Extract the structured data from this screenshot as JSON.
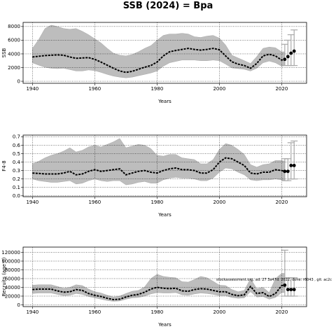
{
  "figure": {
    "title": "SSB (2024) = Bpa",
    "watermark": "stockassessment.org, ad: 27 3a47d. 2022, done: r6043 , git: ac2c"
  },
  "colors": {
    "band": "#bdbdbd",
    "band_edge": "#a8a8a8",
    "line": "#000000",
    "grid": "#000000",
    "errorbar": "#a9a9a9"
  },
  "chart_data": [
    {
      "type": "line",
      "title": "",
      "xlabel": "Years",
      "ylabel": "SSB",
      "xlim": [
        1937,
        2028
      ],
      "ylim": [
        -300,
        8600
      ],
      "xticks": [
        1940,
        1960,
        1980,
        2000,
        2020
      ],
      "yticks": [
        0,
        2000,
        4000,
        6000,
        8000
      ],
      "ytick_labels": [
        "0",
        "2000",
        "4000",
        "6000",
        "8000"
      ],
      "grid": true,
      "series": [
        {
          "role": "estimate",
          "x": [
            1940,
            1942,
            1944,
            1946,
            1948,
            1950,
            1952,
            1954,
            1956,
            1958,
            1960,
            1962,
            1964,
            1966,
            1968,
            1970,
            1972,
            1974,
            1976,
            1978,
            1980,
            1982,
            1984,
            1986,
            1988,
            1990,
            1992,
            1994,
            1996,
            1998,
            2000,
            2002,
            2004,
            2006,
            2008,
            2010,
            2012,
            2014,
            2016,
            2018,
            2020,
            2021
          ],
          "y": [
            3550,
            3650,
            3750,
            3800,
            3850,
            3800,
            3550,
            3350,
            3400,
            3450,
            3200,
            2800,
            2350,
            1900,
            1500,
            1300,
            1450,
            1750,
            2050,
            2300,
            2800,
            3700,
            4300,
            4500,
            4650,
            4800,
            4650,
            4550,
            4650,
            4800,
            4600,
            3700,
            2850,
            2500,
            2300,
            1900,
            2600,
            3700,
            3950,
            3700,
            3100,
            3200
          ]
        }
      ],
      "confidence_band": {
        "x": [
          1940,
          1942,
          1944,
          1946,
          1948,
          1950,
          1952,
          1954,
          1956,
          1958,
          1960,
          1962,
          1964,
          1966,
          1968,
          1970,
          1972,
          1974,
          1976,
          1978,
          1980,
          1982,
          1984,
          1986,
          1988,
          1990,
          1992,
          1994,
          1996,
          1998,
          2000,
          2002,
          2004,
          2006,
          2008,
          2010,
          2012,
          2014,
          2016,
          2018,
          2020,
          2021
        ],
        "low": [
          2700,
          2350,
          2050,
          1900,
          1850,
          1900,
          1700,
          1500,
          1500,
          1650,
          1550,
          1300,
          1000,
          750,
          600,
          500,
          600,
          800,
          1000,
          1200,
          1500,
          2200,
          2700,
          2900,
          3100,
          3100,
          3100,
          3000,
          3000,
          3100,
          3000,
          2500,
          1950,
          1850,
          1750,
          1500,
          1900,
          2700,
          2950,
          2700,
          2200,
          2300
        ],
        "high": [
          4800,
          6100,
          7700,
          8200,
          8000,
          7700,
          7600,
          7700,
          7300,
          6800,
          6200,
          5600,
          4800,
          4100,
          3800,
          3700,
          3900,
          4300,
          4800,
          5200,
          6000,
          6700,
          6900,
          6900,
          7000,
          6900,
          6500,
          6400,
          6600,
          6700,
          6300,
          5300,
          3800,
          3400,
          3000,
          2600,
          3600,
          4800,
          5000,
          4900,
          4300,
          4300
        ]
      },
      "forecast_points": {
        "x": [
          2021,
          2022,
          2023,
          2024
        ],
        "y": [
          3200,
          3600,
          4100,
          4400
        ],
        "low": [
          2300,
          2300,
          2300,
          2300
        ],
        "high": [
          5400,
          6000,
          6800,
          7500
        ]
      }
    },
    {
      "type": "line",
      "title": "",
      "xlabel": "Years",
      "ylabel": "F4-8",
      "xlim": [
        1937,
        2028
      ],
      "ylim": [
        -0.01,
        0.72
      ],
      "xticks": [
        1940,
        1960,
        1980,
        2000,
        2020
      ],
      "yticks": [
        0.0,
        0.1,
        0.2,
        0.3,
        0.4,
        0.5,
        0.6,
        0.7
      ],
      "ytick_labels": [
        "0.0",
        "0.1",
        "0.2",
        "0.3",
        "0.4",
        "0.5",
        "0.6",
        "0.7"
      ],
      "grid": true,
      "series": [
        {
          "role": "estimate",
          "x": [
            1940,
            1942,
            1944,
            1946,
            1948,
            1950,
            1952,
            1954,
            1956,
            1958,
            1960,
            1962,
            1964,
            1966,
            1968,
            1970,
            1972,
            1974,
            1976,
            1978,
            1980,
            1982,
            1984,
            1986,
            1988,
            1990,
            1992,
            1994,
            1996,
            1998,
            2000,
            2002,
            2004,
            2006,
            2008,
            2010,
            2012,
            2014,
            2016,
            2018,
            2020,
            2021
          ],
          "y": [
            0.27,
            0.265,
            0.26,
            0.26,
            0.26,
            0.27,
            0.29,
            0.25,
            0.26,
            0.29,
            0.31,
            0.29,
            0.3,
            0.31,
            0.32,
            0.25,
            0.27,
            0.29,
            0.3,
            0.28,
            0.27,
            0.3,
            0.32,
            0.33,
            0.31,
            0.31,
            0.3,
            0.27,
            0.27,
            0.31,
            0.4,
            0.45,
            0.44,
            0.4,
            0.36,
            0.27,
            0.26,
            0.28,
            0.28,
            0.31,
            0.3,
            0.29
          ]
        }
      ],
      "confidence_band": {
        "x": [
          1940,
          1942,
          1944,
          1946,
          1948,
          1950,
          1952,
          1954,
          1956,
          1958,
          1960,
          1962,
          1964,
          1966,
          1968,
          1970,
          1972,
          1974,
          1976,
          1978,
          1980,
          1982,
          1984,
          1986,
          1988,
          1990,
          1992,
          1994,
          1996,
          1998,
          2000,
          2002,
          2004,
          2006,
          2008,
          2010,
          2012,
          2014,
          2016,
          2018,
          2020,
          2021
        ],
        "low": [
          0.2,
          0.18,
          0.17,
          0.16,
          0.16,
          0.17,
          0.18,
          0.14,
          0.15,
          0.18,
          0.2,
          0.18,
          0.17,
          0.18,
          0.18,
          0.13,
          0.14,
          0.16,
          0.17,
          0.15,
          0.15,
          0.19,
          0.21,
          0.22,
          0.21,
          0.21,
          0.2,
          0.18,
          0.18,
          0.21,
          0.28,
          0.33,
          0.32,
          0.28,
          0.25,
          0.19,
          0.18,
          0.19,
          0.19,
          0.2,
          0.19,
          0.18
        ],
        "high": [
          0.38,
          0.41,
          0.45,
          0.48,
          0.5,
          0.53,
          0.57,
          0.52,
          0.54,
          0.58,
          0.6,
          0.58,
          0.61,
          0.64,
          0.68,
          0.57,
          0.59,
          0.61,
          0.6,
          0.56,
          0.48,
          0.47,
          0.49,
          0.49,
          0.45,
          0.44,
          0.43,
          0.38,
          0.38,
          0.43,
          0.55,
          0.62,
          0.6,
          0.55,
          0.49,
          0.37,
          0.34,
          0.37,
          0.38,
          0.42,
          0.42,
          0.41
        ]
      },
      "forecast_points": {
        "x": [
          2021,
          2022,
          2023,
          2024
        ],
        "y": [
          0.29,
          0.29,
          0.36,
          0.36
        ],
        "low": [
          0.18,
          0.18,
          0.2,
          0.2
        ],
        "high": [
          0.44,
          0.44,
          0.63,
          0.65
        ]
      }
    },
    {
      "type": "line",
      "title": "",
      "xlabel": "Years",
      "ylabel": "Recruits (age 0)",
      "xlim": [
        1937,
        2028
      ],
      "ylim": [
        -4000,
        132000
      ],
      "xticks": [
        1940,
        1960,
        1980,
        2000,
        2020
      ],
      "yticks": [
        0,
        20000,
        40000,
        60000,
        80000,
        100000,
        120000
      ],
      "ytick_labels": [
        "0",
        "20000",
        "40000",
        "60000",
        "80000",
        "100000",
        "120000"
      ],
      "grid": true,
      "series": [
        {
          "role": "estimate",
          "x": [
            1940,
            1942,
            1944,
            1946,
            1948,
            1950,
            1952,
            1954,
            1956,
            1958,
            1960,
            1962,
            1964,
            1966,
            1968,
            1970,
            1972,
            1974,
            1976,
            1978,
            1980,
            1982,
            1984,
            1986,
            1988,
            1990,
            1992,
            1994,
            1996,
            1998,
            2000,
            2002,
            2004,
            2006,
            2008,
            2010,
            2012,
            2014,
            2016,
            2018,
            2020,
            2021
          ],
          "y": [
            35000,
            36000,
            36000,
            36000,
            32000,
            29000,
            30000,
            35000,
            33000,
            26000,
            22000,
            19000,
            15000,
            12000,
            13000,
            18000,
            22000,
            24000,
            29000,
            36000,
            40000,
            38000,
            37000,
            38000,
            32000,
            31000,
            35000,
            37000,
            36000,
            33000,
            30000,
            30000,
            24000,
            21000,
            23000,
            42000,
            26000,
            28000,
            19000,
            26000,
            44000,
            45000
          ]
        }
      ],
      "confidence_band": {
        "x": [
          1940,
          1942,
          1944,
          1946,
          1948,
          1950,
          1952,
          1954,
          1956,
          1958,
          1960,
          1962,
          1964,
          1966,
          1968,
          1970,
          1972,
          1974,
          1976,
          1978,
          1980,
          1982,
          1984,
          1986,
          1988,
          1990,
          1992,
          1994,
          1996,
          1998,
          2000,
          2002,
          2004,
          2006,
          2008,
          2010,
          2012,
          2014,
          2016,
          2018,
          2020,
          2021
        ],
        "low": [
          26000,
          27000,
          27000,
          27000,
          24000,
          21000,
          22000,
          26000,
          24000,
          19000,
          16000,
          13000,
          10000,
          8000,
          9000,
          13000,
          16000,
          17000,
          20000,
          25000,
          28000,
          27000,
          27000,
          28000,
          23000,
          22000,
          25000,
          27000,
          26000,
          24000,
          21000,
          21000,
          17000,
          15000,
          16000,
          30000,
          18000,
          19000,
          13000,
          17000,
          28000,
          28000
        ],
        "high": [
          45000,
          46000,
          46000,
          46000,
          42000,
          38000,
          40000,
          46000,
          44000,
          36000,
          30000,
          27000,
          22000,
          18000,
          20000,
          26000,
          31000,
          33000,
          41000,
          60000,
          70000,
          65000,
          63000,
          62000,
          53000,
          52000,
          58000,
          65000,
          62000,
          54000,
          45000,
          44000,
          35000,
          30000,
          33000,
          60000,
          37000,
          40000,
          28000,
          60000,
          72000,
          72000
        ]
      },
      "forecast_points": {
        "x": [
          2021,
          2022,
          2023,
          2024
        ],
        "y": [
          45000,
          35000,
          35000,
          35000
        ],
        "low": [
          20000,
          20000,
          20000,
          20000
        ],
        "high": [
          125000,
          62000,
          62000,
          62000
        ]
      }
    }
  ]
}
